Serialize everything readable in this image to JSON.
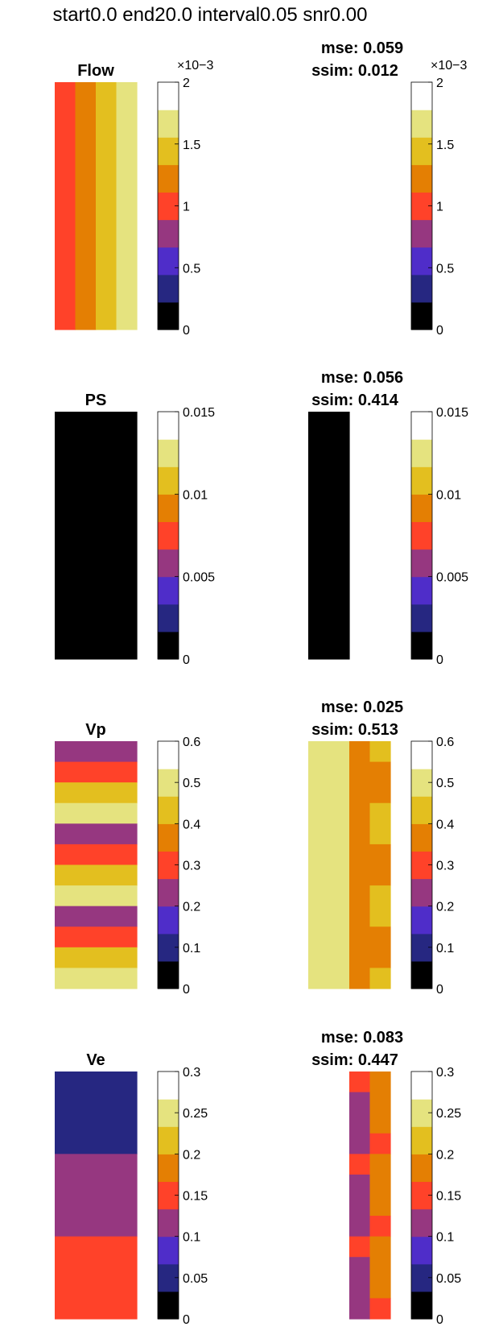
{
  "figure": {
    "title": "start0.0 end20.0 interval0.05 snr0.00"
  },
  "chart_data": {
    "type": "heatmap",
    "colormap": [
      "#000000",
      "#262781",
      "#4f2dc9",
      "#963780",
      "#ff4229",
      "#e47f03",
      "#e3bf1f",
      "#e5e37f",
      "#ffffff"
    ],
    "rows": [
      {
        "title": "Flow",
        "clim": [
          0,
          0.002
        ],
        "colorbar_exponent": "×10−3",
        "colorbar_ticks": [
          "0",
          "0.5",
          "1",
          "1.5",
          "2"
        ],
        "colorbar_tick_values": [
          0,
          0.0005,
          0.001,
          0.0015,
          0.002
        ],
        "left": {
          "n_rows": 12,
          "n_cols": 4,
          "cells": [
            [
              0,
              0,
              12,
              1,
              4
            ],
            [
              0,
              1,
              12,
              1,
              5
            ],
            [
              0,
              2,
              12,
              1,
              6
            ],
            [
              0,
              3,
              12,
              1,
              7
            ]
          ]
        },
        "right": {
          "mse": "mse: 0.059",
          "ssim": "ssim: 0.012",
          "n_rows": 12,
          "n_cols": 4,
          "cells": []
        }
      },
      {
        "title": "PS",
        "clim": [
          0,
          0.015
        ],
        "colorbar_exponent": "",
        "colorbar_ticks": [
          "0",
          "0.005",
          "0.01",
          "0.015"
        ],
        "colorbar_tick_values": [
          0,
          0.005,
          0.01,
          0.015
        ],
        "left": {
          "n_rows": 12,
          "n_cols": 4,
          "cells": [
            [
              0,
              0,
              12,
              4,
              0
            ]
          ]
        },
        "right": {
          "mse": "mse: 0.056",
          "ssim": "ssim: 0.414",
          "n_rows": 12,
          "n_cols": 4,
          "cells": [
            [
              0,
              0,
              12,
              2,
              0
            ]
          ]
        }
      },
      {
        "title": "Vp",
        "clim": [
          0,
          0.6
        ],
        "colorbar_exponent": "",
        "colorbar_ticks": [
          "0",
          "0.1",
          "0.2",
          "0.3",
          "0.4",
          "0.5",
          "0.6"
        ],
        "colorbar_tick_values": [
          0,
          0.1,
          0.2,
          0.3,
          0.4,
          0.5,
          0.6
        ],
        "left": {
          "n_rows": 12,
          "n_cols": 4,
          "cells": [
            [
              0,
              0,
              1,
              4,
              3
            ],
            [
              1,
              0,
              1,
              4,
              4
            ],
            [
              2,
              0,
              1,
              4,
              6
            ],
            [
              3,
              0,
              1,
              4,
              7
            ],
            [
              4,
              0,
              1,
              4,
              3
            ],
            [
              5,
              0,
              1,
              4,
              4
            ],
            [
              6,
              0,
              1,
              4,
              6
            ],
            [
              7,
              0,
              1,
              4,
              7
            ],
            [
              8,
              0,
              1,
              4,
              3
            ],
            [
              9,
              0,
              1,
              4,
              4
            ],
            [
              10,
              0,
              1,
              4,
              6
            ],
            [
              11,
              0,
              1,
              4,
              7
            ]
          ]
        },
        "right": {
          "mse": "mse: 0.025",
          "ssim": "ssim: 0.513",
          "n_rows": 12,
          "n_cols": 4,
          "cells": [
            [
              0,
              0,
              12,
              2,
              7
            ],
            [
              0,
              2,
              12,
              1,
              5
            ],
            [
              0,
              3,
              1,
              1,
              6
            ],
            [
              1,
              3,
              2,
              1,
              5
            ],
            [
              3,
              3,
              2,
              1,
              6
            ],
            [
              5,
              3,
              2,
              1,
              5
            ],
            [
              7,
              3,
              2,
              1,
              6
            ],
            [
              9,
              3,
              2,
              1,
              5
            ],
            [
              11,
              3,
              1,
              1,
              6
            ]
          ]
        }
      },
      {
        "title": "Ve",
        "clim": [
          0,
          0.3
        ],
        "colorbar_exponent": "",
        "colorbar_ticks": [
          "0",
          "0.05",
          "0.1",
          "0.15",
          "0.2",
          "0.25",
          "0.3"
        ],
        "colorbar_tick_values": [
          0,
          0.05,
          0.1,
          0.15,
          0.2,
          0.25,
          0.3
        ],
        "left": {
          "n_rows": 12,
          "n_cols": 4,
          "cells": [
            [
              0,
              0,
              4,
              4,
              1
            ],
            [
              4,
              0,
              4,
              4,
              3
            ],
            [
              8,
              0,
              4,
              4,
              4
            ]
          ]
        },
        "right": {
          "mse": "mse: 0.083",
          "ssim": "ssim: 0.447",
          "n_rows": 12,
          "n_cols": 4,
          "cells": [
            [
              0,
              2,
              1,
              1,
              4
            ],
            [
              1,
              2,
              3,
              1,
              3
            ],
            [
              4,
              2,
              1,
              1,
              4
            ],
            [
              5,
              2,
              3,
              1,
              3
            ],
            [
              8,
              2,
              1,
              1,
              4
            ],
            [
              9,
              2,
              3,
              1,
              3
            ],
            [
              0,
              3,
              3,
              1,
              5
            ],
            [
              3,
              3,
              1,
              1,
              4
            ],
            [
              4,
              3,
              3,
              1,
              5
            ],
            [
              7,
              3,
              1,
              1,
              4
            ],
            [
              8,
              3,
              3,
              1,
              5
            ],
            [
              11,
              3,
              1,
              1,
              4
            ]
          ]
        }
      }
    ]
  }
}
